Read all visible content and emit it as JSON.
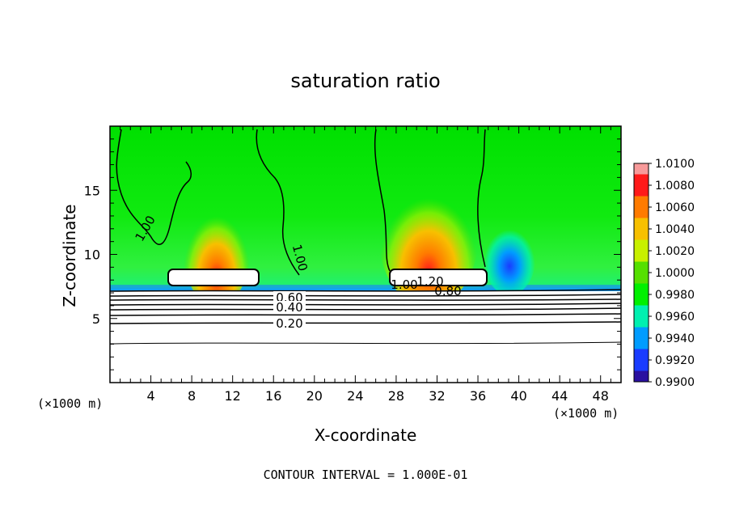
{
  "chart_data": {
    "type": "heatmap",
    "title": "saturation ratio",
    "xlabel": "X-coordinate",
    "ylabel": "Z-coordinate",
    "x_unit": "(×1000 m)",
    "y_unit": "(×1000 m)",
    "xlim": [
      0,
      50
    ],
    "ylim": [
      0,
      20
    ],
    "x_ticks": [
      4,
      8,
      12,
      16,
      20,
      24,
      28,
      32,
      36,
      40,
      44,
      48
    ],
    "y_ticks": [
      5,
      10,
      15
    ],
    "colorbar": {
      "levels": [
        "1.0100",
        "1.0080",
        "1.0060",
        "1.0040",
        "1.0020",
        "1.0000",
        "0.9980",
        "0.9960",
        "0.9940",
        "0.9920",
        "0.9900"
      ],
      "colors": [
        "#f79a9a",
        "#ff1a1a",
        "#ff7b00",
        "#f7c000",
        "#c8f000",
        "#55e000",
        "#00f000",
        "#00f0b0",
        "#009cff",
        "#1a3cff",
        "#2a10a0",
        "#6a0090"
      ]
    },
    "contour_labels": [
      "1.00",
      "1.00",
      "1.00",
      "1.20",
      "0.80",
      "0.60",
      "0.40",
      "0.20"
    ],
    "contour_interval_text": "CONTOUR INTERVAL = 1.000E-01"
  }
}
